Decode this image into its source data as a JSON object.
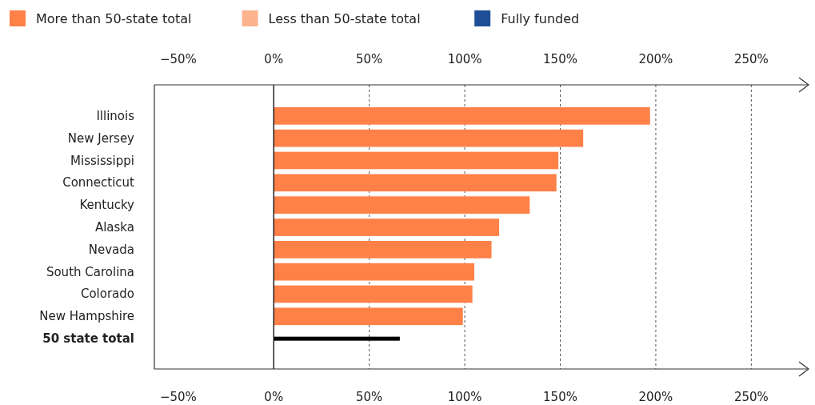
{
  "chart_data": {
    "type": "bar",
    "orientation": "horizontal",
    "stacked": true,
    "categories": [
      "Illinois",
      "New Jersey",
      "Mississippi",
      "Connecticut",
      "Kentucky",
      "Alaska",
      "Nevada",
      "South Carolina",
      "Colorado",
      "New Hampshire",
      "50 state total"
    ],
    "series": [
      {
        "name": "More than 50-state total",
        "color": "#ff8148",
        "values": [
          197,
          162,
          149,
          148,
          134,
          118,
          114,
          105,
          104,
          99,
          null
        ]
      },
      {
        "name": "Less than 50-state total",
        "color": "#fcb38e",
        "values": [
          null,
          null,
          null,
          null,
          null,
          null,
          null,
          null,
          null,
          null,
          null
        ]
      },
      {
        "name": "Fully funded",
        "color": "#1f4e96",
        "values": [
          null,
          null,
          null,
          null,
          null,
          null,
          null,
          null,
          null,
          null,
          null
        ]
      },
      {
        "color": "#000000",
        "values": [
          null,
          null,
          null,
          null,
          null,
          null,
          null,
          null,
          null,
          null,
          66
        ]
      }
    ],
    "xlim": [
      -62.5,
      280
    ],
    "xticks": [
      {
        "value": -50,
        "label": "−50%"
      },
      {
        "value": 0,
        "label": "0%"
      },
      {
        "value": 50,
        "label": "50%"
      },
      {
        "value": 100,
        "label": "100%"
      },
      {
        "value": 150,
        "label": "150%"
      },
      {
        "value": 200,
        "label": "200%"
      },
      {
        "value": 250,
        "label": "250%"
      }
    ],
    "x2lim": [
      -62.5,
      280
    ],
    "x2ticks": [
      {
        "value": -50,
        "label": "−50%"
      },
      {
        "value": 0,
        "label": "0%"
      },
      {
        "value": 50,
        "label": "50%"
      },
      {
        "value": 100,
        "label": "100%"
      },
      {
        "value": 150,
        "label": "150%"
      },
      {
        "value": 200,
        "label": "200%"
      },
      {
        "value": 250,
        "label": "250%"
      }
    ],
    "ref_lines": [
      {
        "axis": "x",
        "value": 0,
        "color": "#000000",
        "line_style": "solid"
      }
    ],
    "grid": "x",
    "legend": "top left"
  }
}
